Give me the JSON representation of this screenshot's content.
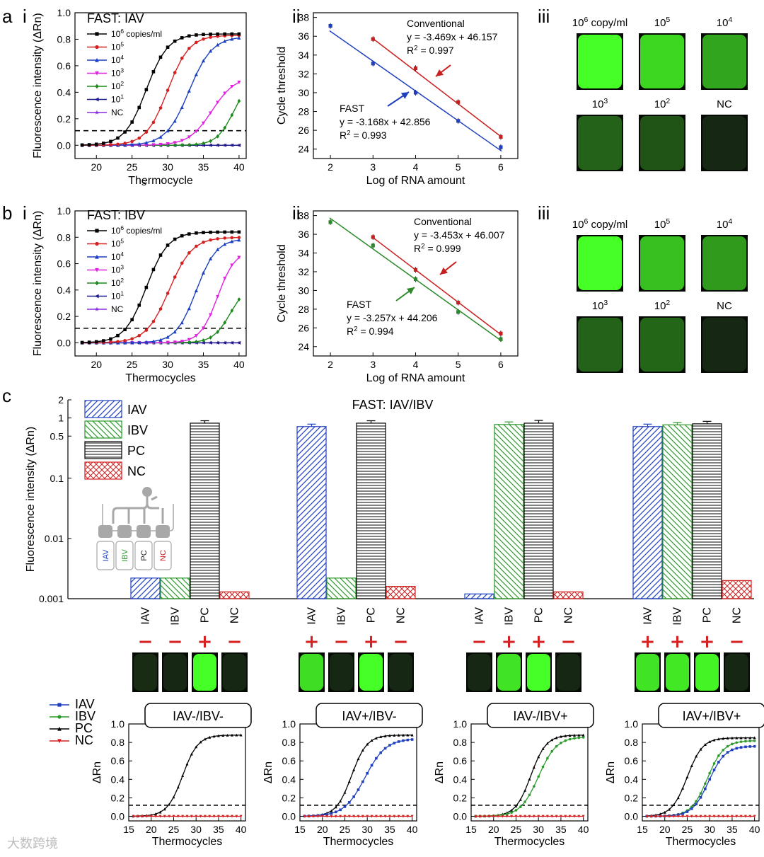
{
  "panel_labels": {
    "a": "a",
    "b": "b",
    "c": "c",
    "i": "i",
    "ii": "ii",
    "iii": "iii",
    "axis_artifact": "s"
  },
  "watermark": "大数跨境",
  "colors": {
    "c1e6": "#000000",
    "c1e5": "#d42020",
    "c1e4": "#1a3fbf",
    "c1e3": "#e020e0",
    "c1e2": "#1a8a1a",
    "c1e1": "#1a1a8a",
    "cNC": "#8a2be2",
    "IAV": "#1f3fbf",
    "IBV": "#2a9a2a",
    "PC": "#000000",
    "NC": "#d42020",
    "conventional": "#c81e1e",
    "fast_blue": "#1f3fbf",
    "fast_green": "#2a8a2a"
  },
  "chart_data": [
    {
      "id": "a_i",
      "type": "line",
      "title": "FAST: IAV",
      "xlabel": "Thermocycle",
      "ylabel": "Fluorescence intensity (ΔRn)",
      "xlim": [
        17,
        41
      ],
      "ylim": [
        -0.1,
        1.0
      ],
      "xticks": [
        20,
        25,
        30,
        35,
        40
      ],
      "yticks": [
        0.0,
        0.2,
        0.4,
        0.6,
        0.8,
        1.0
      ],
      "threshold": 0.11,
      "series": [
        {
          "name": "10^6 copies/ml",
          "sup": "6",
          "rest": " copies/ml",
          "color_key": "c1e6",
          "marker": "square",
          "ct": 27.0,
          "plateau": 0.84,
          "slope": 1.5
        },
        {
          "name": "10^5",
          "sup": "5",
          "rest": "",
          "color_key": "c1e5",
          "marker": "circle",
          "ct": 30.0,
          "plateau": 0.83,
          "slope": 1.5
        },
        {
          "name": "10^4",
          "sup": "4",
          "rest": "",
          "color_key": "c1e4",
          "marker": "triangle",
          "ct": 33.0,
          "plateau": 0.82,
          "slope": 1.6
        },
        {
          "name": "10^3",
          "sup": "3",
          "rest": "",
          "color_key": "c1e3",
          "marker": "tri-down",
          "ct": 36.2,
          "plateau": 0.52,
          "slope": 1.6
        },
        {
          "name": "10^2",
          "sup": "2",
          "rest": "",
          "color_key": "c1e2",
          "marker": "diamond",
          "ct": 39.3,
          "plateau": 0.52,
          "slope": 1.2
        },
        {
          "name": "10^1",
          "sup": "1",
          "rest": "",
          "color_key": "c1e1",
          "marker": "tri-left",
          "ct": 0,
          "plateau": 0,
          "slope": 1
        },
        {
          "name": "NC",
          "sup": "",
          "rest": "NC",
          "color_key": "cNC",
          "marker": "star",
          "ct": 0,
          "plateau": 0,
          "slope": 1
        }
      ]
    },
    {
      "id": "a_ii",
      "type": "scatter",
      "xlabel": "Log of RNA amount",
      "ylabel": "Cycle threshold",
      "xlim": [
        1.6,
        6.4
      ],
      "ylim": [
        23,
        38.5
      ],
      "xticks": [
        2,
        3,
        4,
        5,
        6
      ],
      "yticks": [
        24,
        26,
        28,
        30,
        32,
        34,
        36,
        38
      ],
      "series": [
        {
          "name": "Conventional",
          "color_key": "conventional",
          "x": [
            3,
            4,
            5,
            6
          ],
          "y": [
            35.7,
            32.6,
            29.0,
            25.3
          ],
          "fit": {
            "slope": -3.469,
            "intercept": 46.157
          },
          "eq": "y = -3.469x + 46.157",
          "r2_label": "R",
          "r2_value": " = 0.997"
        },
        {
          "name": "FAST",
          "color_key": "fast_blue",
          "x": [
            2,
            3,
            4,
            5,
            6
          ],
          "y": [
            37.1,
            33.1,
            30.0,
            27.0,
            24.2
          ],
          "fit": {
            "slope": -3.168,
            "intercept": 42.856
          },
          "eq": "y = -3.168x + 42.856",
          "r2_label": "R",
          "r2_value": " = 0.993"
        }
      ]
    },
    {
      "id": "b_i",
      "type": "line",
      "title": "FAST: IBV",
      "xlabel": "Thermocycles",
      "ylabel": "Fluorescence intensity (ΔRn)",
      "xlim": [
        17,
        41
      ],
      "ylim": [
        -0.1,
        1.0
      ],
      "xticks": [
        20,
        25,
        30,
        35,
        40
      ],
      "yticks": [
        0.0,
        0.2,
        0.4,
        0.6,
        0.8,
        1.0
      ],
      "threshold": 0.11,
      "series": [
        {
          "name": "10^6 copies/ml",
          "sup": "6",
          "rest": " copies/ml",
          "color_key": "c1e6",
          "marker": "square",
          "ct": 27.0,
          "plateau": 0.84,
          "slope": 1.5
        },
        {
          "name": "10^5",
          "sup": "5",
          "rest": "",
          "color_key": "c1e5",
          "marker": "circle",
          "ct": 30.2,
          "plateau": 0.8,
          "slope": 1.6
        },
        {
          "name": "10^4",
          "sup": "4",
          "rest": "",
          "color_key": "c1e4",
          "marker": "triangle",
          "ct": 34.0,
          "plateau": 0.79,
          "slope": 1.4
        },
        {
          "name": "10^3",
          "sup": "3",
          "rest": "",
          "color_key": "c1e3",
          "marker": "tri-down",
          "ct": 37.0,
          "plateau": 0.7,
          "slope": 1.2
        },
        {
          "name": "10^2",
          "sup": "2",
          "rest": "",
          "color_key": "c1e2",
          "marker": "diamond",
          "ct": 38.8,
          "plateau": 0.45,
          "slope": 1.2
        },
        {
          "name": "10^1",
          "sup": "1",
          "rest": "",
          "color_key": "c1e1",
          "marker": "tri-left",
          "ct": 0,
          "plateau": 0,
          "slope": 1
        },
        {
          "name": "NC",
          "sup": "",
          "rest": "NC",
          "color_key": "cNC",
          "marker": "star",
          "ct": 0,
          "plateau": 0,
          "slope": 1
        }
      ]
    },
    {
      "id": "b_ii",
      "type": "scatter",
      "xlabel": "Log of RNA amount",
      "ylabel": "Cycle threshold",
      "xlim": [
        1.6,
        6.4
      ],
      "ylim": [
        23,
        38.5
      ],
      "xticks": [
        2,
        3,
        4,
        5,
        6
      ],
      "yticks": [
        24,
        26,
        28,
        30,
        32,
        34,
        36,
        38
      ],
      "series": [
        {
          "name": "Conventional",
          "color_key": "conventional",
          "x": [
            3,
            4,
            5,
            6
          ],
          "y": [
            35.7,
            32.2,
            28.7,
            25.4
          ],
          "fit": {
            "slope": -3.453,
            "intercept": 46.007
          },
          "eq": "y = -3.453x + 46.007",
          "r2_label": "R",
          "r2_value": " = 0.999"
        },
        {
          "name": "FAST",
          "color_key": "fast_green",
          "x": [
            2,
            3,
            4,
            5,
            6
          ],
          "y": [
            37.3,
            34.8,
            31.2,
            27.7,
            24.8
          ],
          "fit": {
            "slope": -3.257,
            "intercept": 44.206
          },
          "eq": "y = -3.257x + 44.206",
          "r2_label": "R",
          "r2_value": " = 0.994"
        }
      ]
    },
    {
      "id": "c_bar",
      "type": "bar",
      "title": "FAST: IAV/IBV",
      "ylabel": "Fluorescence intensity (ΔRn)",
      "yscale": "log",
      "ylim": [
        0.001,
        2
      ],
      "yticks": [
        0.001,
        0.01,
        0.1,
        0.5,
        1,
        2
      ],
      "ytick_labels": [
        "0.001",
        "0.01",
        "0.1",
        "0.5",
        "1",
        "2"
      ],
      "legend": [
        "IAV",
        "IBV",
        "PC",
        "NC"
      ],
      "chip_labels": [
        "IAV",
        "IBV",
        "PC",
        "NC"
      ],
      "groups": [
        {
          "categories": [
            "IAV",
            "IBV",
            "PC",
            "NC"
          ],
          "values": [
            0.0022,
            0.0022,
            0.82,
            0.0013
          ],
          "errors": [
            0,
            0,
            0.08,
            0
          ],
          "signs": [
            "-",
            "-",
            "+",
            "-"
          ]
        },
        {
          "categories": [
            "IAV",
            "IBV",
            "PC",
            "NC"
          ],
          "values": [
            0.72,
            0.0022,
            0.82,
            0.0016
          ],
          "errors": [
            0.07,
            0,
            0.08,
            0
          ],
          "signs": [
            "+",
            "-",
            "+",
            "-"
          ]
        },
        {
          "categories": [
            "IAV",
            "IBV",
            "PC",
            "NC"
          ],
          "values": [
            0.0012,
            0.78,
            0.82,
            0.0013
          ],
          "errors": [
            0,
            0.08,
            0.09,
            0
          ],
          "signs": [
            "-",
            "+",
            "+",
            "-"
          ]
        },
        {
          "categories": [
            "IAV",
            "IBV",
            "PC",
            "NC"
          ],
          "values": [
            0.72,
            0.77,
            0.8,
            0.002
          ],
          "errors": [
            0.07,
            0.07,
            0.08,
            0
          ],
          "signs": [
            "+",
            "+",
            "+",
            "-"
          ]
        }
      ]
    },
    {
      "id": "c_curves",
      "type": "line",
      "xlabel": "Thermocycles",
      "ylabel": "ΔRn",
      "xlim": [
        15,
        41
      ],
      "ylim": [
        -0.05,
        1.0
      ],
      "xticks": [
        15,
        20,
        25,
        30,
        35,
        40
      ],
      "yticks": [
        0.0,
        0.2,
        0.4,
        0.6,
        0.8,
        1.0
      ],
      "threshold": 0.12,
      "legend": [
        {
          "name": "IAV",
          "color_key": "IAV",
          "marker": "square"
        },
        {
          "name": "IBV",
          "color_key": "IBV",
          "marker": "circle"
        },
        {
          "name": "PC",
          "color_key": "PC",
          "marker": "triangle"
        },
        {
          "name": "NC",
          "color_key": "NC",
          "marker": "tri-down"
        }
      ],
      "panels": [
        {
          "title": "IAV-/IBV-",
          "curves": [
            {
              "name": "PC",
              "color_key": "PC",
              "marker": "triangle",
              "ct": 27.0,
              "plateau": 0.88,
              "slope": 1.7
            },
            {
              "name": "NC",
              "color_key": "NC",
              "marker": "tri-down",
              "ct": 0,
              "plateau": 0,
              "slope": 1
            }
          ]
        },
        {
          "title": "IAV+/IBV-",
          "curves": [
            {
              "name": "PC",
              "color_key": "PC",
              "marker": "triangle",
              "ct": 26.5,
              "plateau": 0.88,
              "slope": 1.7
            },
            {
              "name": "IAV",
              "color_key": "IAV",
              "marker": "square",
              "ct": 29.5,
              "plateau": 0.84,
              "slope": 2.3
            },
            {
              "name": "NC",
              "color_key": "NC",
              "marker": "tri-down",
              "ct": 0,
              "plateau": 0,
              "slope": 1
            }
          ]
        },
        {
          "title": "IAV-/IBV+",
          "curves": [
            {
              "name": "PC",
              "color_key": "PC",
              "marker": "triangle",
              "ct": 28.3,
              "plateau": 0.88,
              "slope": 1.7
            },
            {
              "name": "IBV",
              "color_key": "IBV",
              "marker": "circle",
              "ct": 30.0,
              "plateau": 0.86,
              "slope": 2.0
            },
            {
              "name": "NC",
              "color_key": "NC",
              "marker": "tri-down",
              "ct": 0,
              "plateau": 0,
              "slope": 1
            }
          ]
        },
        {
          "title": "IAV+/IBV+",
          "curves": [
            {
              "name": "PC",
              "color_key": "PC",
              "marker": "triangle",
              "ct": 25.0,
              "plateau": 0.85,
              "slope": 1.7
            },
            {
              "name": "IBV",
              "color_key": "IBV",
              "marker": "circle",
              "ct": 29.5,
              "plateau": 0.82,
              "slope": 1.8
            },
            {
              "name": "IAV",
              "color_key": "IAV",
              "marker": "square",
              "ct": 29.8,
              "plateau": 0.76,
              "slope": 1.8
            },
            {
              "name": "NC",
              "color_key": "NC",
              "marker": "tri-down",
              "ct": 0,
              "plateau": 0,
              "slope": 1
            }
          ]
        }
      ]
    }
  ],
  "gels": {
    "a": {
      "labels": [
        "copy/ml",
        "10^5",
        "10^4",
        "10^3",
        "10^2",
        "NC"
      ],
      "label_text": [
        {
          "base": "10",
          "sup": "6",
          "rest": " copy/ml"
        },
        {
          "base": "10",
          "sup": "5",
          "rest": ""
        },
        {
          "base": "10",
          "sup": "4",
          "rest": ""
        },
        {
          "base": "10",
          "sup": "3",
          "rest": ""
        },
        {
          "base": "10",
          "sup": "2",
          "rest": ""
        },
        {
          "base": "NC",
          "sup": "",
          "rest": ""
        }
      ],
      "intensity": [
        1.0,
        0.82,
        0.6,
        0.3,
        0.24,
        0.04
      ]
    },
    "b": {
      "labels": [
        "copy/ml",
        "10^5",
        "10^4",
        "10^3",
        "10^2",
        "NC"
      ],
      "label_text": [
        {
          "base": "10",
          "sup": "6",
          "rest": " copy/ml"
        },
        {
          "base": "10",
          "sup": "5",
          "rest": ""
        },
        {
          "base": "10",
          "sup": "4",
          "rest": ""
        },
        {
          "base": "10",
          "sup": "3",
          "rest": ""
        },
        {
          "base": "10",
          "sup": "2",
          "rest": ""
        },
        {
          "base": "NC",
          "sup": "",
          "rest": ""
        }
      ],
      "intensity": [
        1.0,
        0.72,
        0.55,
        0.3,
        0.32,
        0.04
      ]
    },
    "c": [
      [
        0.06,
        0.04,
        1.0,
        0.04
      ],
      [
        0.85,
        0.04,
        1.0,
        0.04
      ],
      [
        0.04,
        0.88,
        1.0,
        0.04
      ],
      [
        0.88,
        0.9,
        0.95,
        0.04
      ]
    ]
  }
}
